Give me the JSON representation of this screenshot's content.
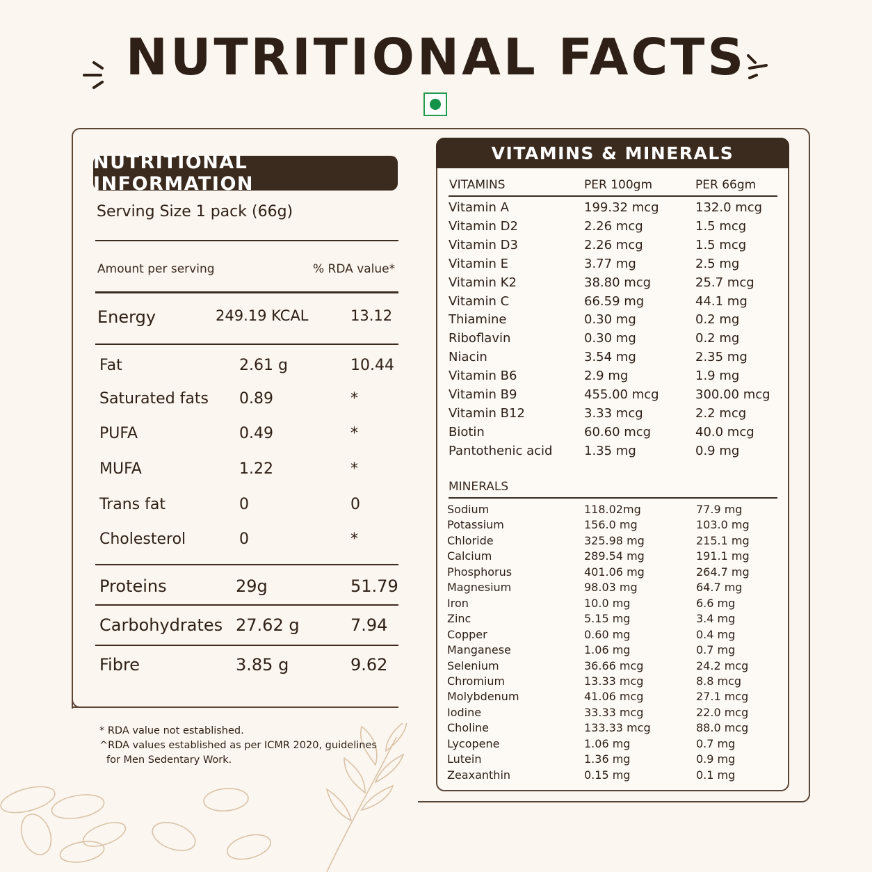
{
  "title": "NUTRITIONAL FACTS",
  "nutrition": {
    "heading": "NUTRITIONAL INFORMATION",
    "serving": "Serving Size 1 pack (66g)",
    "amount_label": "Amount per serving",
    "rda_label": "% RDA value*",
    "rows": [
      {
        "name": "Energy",
        "amount": "249.19 KCAL",
        "rda": "13.12"
      },
      {
        "name": "Fat",
        "amount": "2.61 g",
        "rda": "10.44"
      },
      {
        "name": "Saturated fats",
        "amount": "0.89",
        "rda": "*"
      },
      {
        "name": "PUFA",
        "amount": "0.49",
        "rda": "*"
      },
      {
        "name": "MUFA",
        "amount": "1.22",
        "rda": "*"
      },
      {
        "name": "Trans fat",
        "amount": "0",
        "rda": "0"
      },
      {
        "name": "Cholesterol",
        "amount": "0",
        "rda": "*"
      },
      {
        "name": "Proteins",
        "amount": "29g",
        "rda": "51.79"
      },
      {
        "name": "Carbohydrates",
        "amount": "27.62 g",
        "rda": "7.94"
      },
      {
        "name": "Fibre",
        "amount": "3.85 g",
        "rda": "9.62"
      }
    ],
    "notes": [
      "* RDA value not established.",
      "^RDA values established as per ICMR 2020, guidelines",
      "for Men Sedentary Work."
    ]
  },
  "vitamins_minerals": {
    "heading": "VITAMINS & MINERALS",
    "vit_header": [
      "VITAMINS",
      "PER 100gm",
      "PER 66gm"
    ],
    "vitamins": [
      [
        "Vitamin A",
        "199.32 mcg",
        "132.0 mcg"
      ],
      [
        "Vitamin D2",
        "2.26 mcg",
        "1.5 mcg"
      ],
      [
        "Vitamin D3",
        "2.26 mcg",
        "1.5 mcg"
      ],
      [
        "Vitamin E",
        "3.77 mg",
        "2.5 mg"
      ],
      [
        "Vitamin K2",
        "38.80 mcg",
        "25.7 mcg"
      ],
      [
        "Vitamin C",
        "66.59 mg",
        "44.1 mg"
      ],
      [
        "Thiamine",
        "0.30 mg",
        "0.2 mg"
      ],
      [
        "Riboflavin",
        "0.30 mg",
        "0.2 mg"
      ],
      [
        "Niacin",
        "3.54 mg",
        "2.35 mg"
      ],
      [
        "Vitamin B6",
        "2.9 mg",
        "1.9 mg"
      ],
      [
        "Vitamin B9",
        "455.00 mcg",
        "300.00 mcg"
      ],
      [
        "Vitamin B12",
        "3.33 mcg",
        "2.2 mcg"
      ],
      [
        "Biotin",
        "60.60 mcg",
        "40.0 mcg"
      ],
      [
        "Pantothenic acid",
        "1.35 mg",
        "0.9 mg"
      ]
    ],
    "min_header": "MINERALS",
    "minerals": [
      [
        "Sodium",
        "118.02mg",
        "77.9 mg"
      ],
      [
        "Potassium",
        "156.0 mg",
        "103.0 mg"
      ],
      [
        "Chloride",
        "325.98 mg",
        "215.1 mg"
      ],
      [
        "Calcium",
        "289.54 mg",
        "191.1 mg"
      ],
      [
        "Phosphorus",
        "401.06 mg",
        "264.7 mg"
      ],
      [
        "Magnesium",
        "98.03 mg",
        "64.7 mg"
      ],
      [
        "Iron",
        "10.0 mg",
        "6.6 mg"
      ],
      [
        "Zinc",
        "5.15 mg",
        "3.4 mg"
      ],
      [
        "Copper",
        "0.60 mg",
        "0.4 mg"
      ],
      [
        "Manganese",
        "1.06 mg",
        "0.7 mg"
      ],
      [
        "Selenium",
        "36.66 mcg",
        "24.2 mcg"
      ],
      [
        "Chromium",
        "13.33 mcg",
        "8.8 mcg"
      ],
      [
        "Molybdenum",
        "41.06 mcg",
        "27.1 mcg"
      ],
      [
        "Iodine",
        "33.33 mcg",
        "22.0 mcg"
      ],
      [
        "Choline",
        "133.33 mcg",
        "88.0 mcg"
      ],
      [
        "Lycopene",
        "1.06 mg",
        "0.7 mg"
      ],
      [
        "Lutein",
        "1.36 mg",
        "0.9 mg"
      ],
      [
        "Zeaxanthin",
        "0.15 mg",
        "0.1 mg"
      ]
    ]
  },
  "colors": {
    "background": "#fbf6ef",
    "dark_brown": "#3b2a1e",
    "veg_green": "#14924a"
  },
  "icons": [
    "veg-mark-icon",
    "sparkle-left-icon",
    "sparkle-right-icon",
    "seeds-illustration"
  ]
}
